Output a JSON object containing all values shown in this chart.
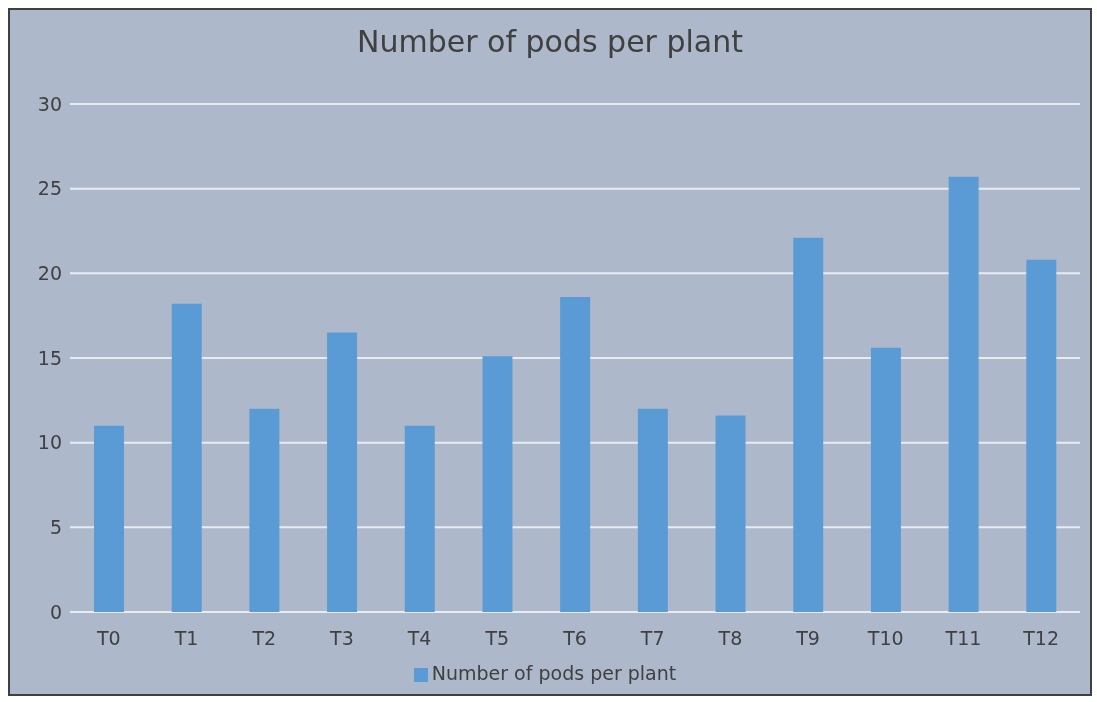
{
  "chart_data": {
    "type": "bar",
    "title": "Number of pods per plant",
    "categories": [
      "T0",
      "T1",
      "T2",
      "T3",
      "T4",
      "T5",
      "T6",
      "T7",
      "T8",
      "T9",
      "T10",
      "T11",
      "T12"
    ],
    "series": [
      {
        "name": "Number of pods per plant",
        "color": "#5b9bd5",
        "values": [
          11.0,
          18.2,
          12.0,
          16.5,
          11.0,
          15.1,
          18.6,
          12.0,
          11.6,
          22.1,
          15.6,
          25.7,
          20.8
        ]
      }
    ],
    "ylim": [
      0,
      30
    ],
    "yticks": [
      0,
      5,
      10,
      15,
      20,
      25,
      30
    ],
    "grid": "y",
    "legend": "bottom"
  }
}
